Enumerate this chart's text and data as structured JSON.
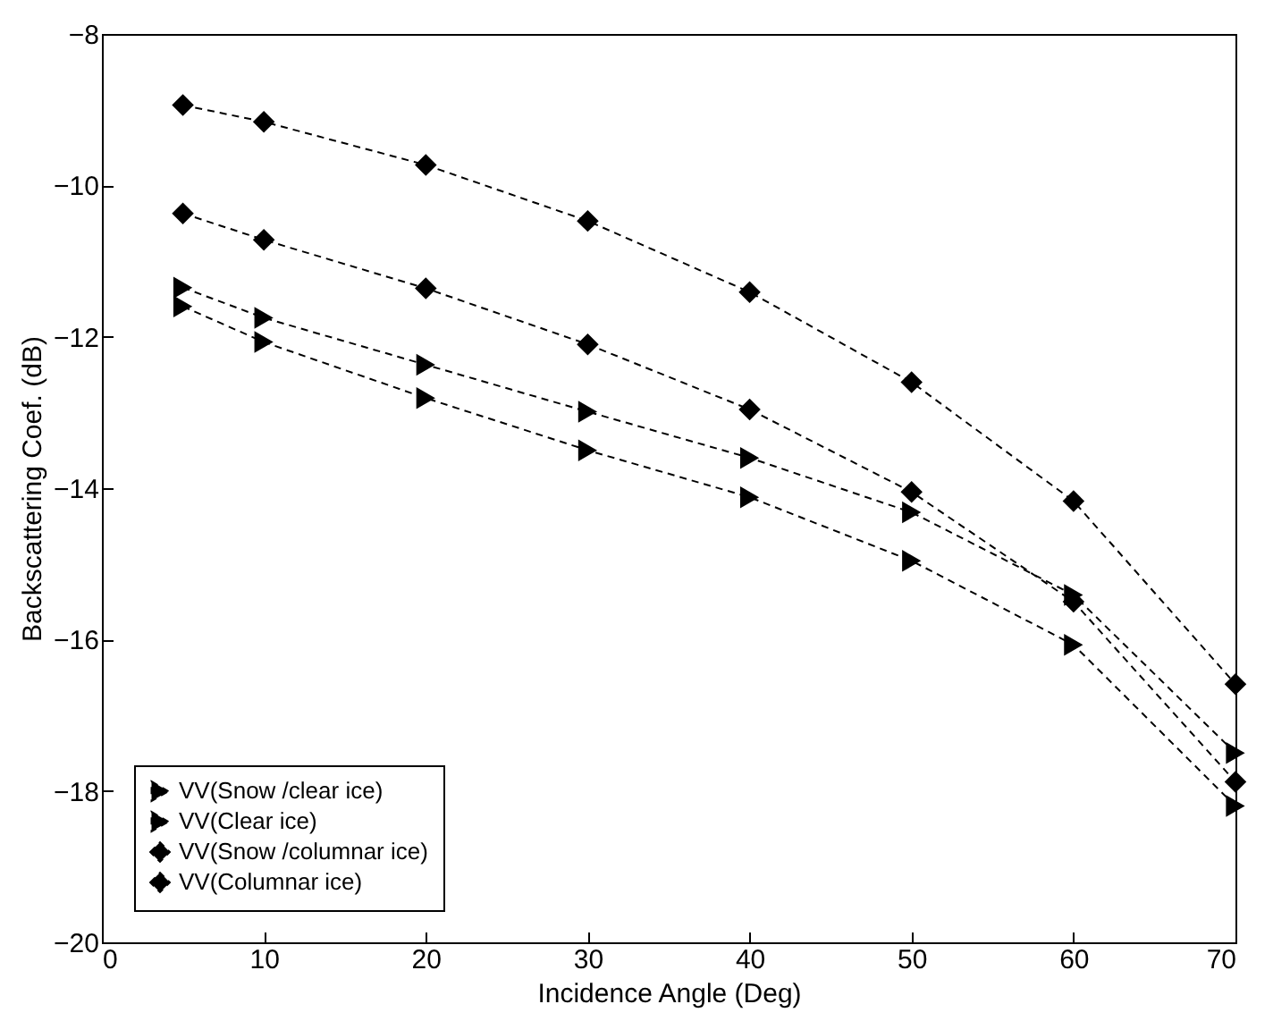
{
  "chart_data": {
    "type": "line",
    "xlabel": "Incidence Angle (Deg)",
    "ylabel": "Backscattering Coef. (dB)",
    "x": [
      5,
      10,
      20,
      30,
      40,
      50,
      60,
      70
    ],
    "xlim": [
      0,
      70
    ],
    "xticks": [
      0,
      10,
      20,
      30,
      40,
      50,
      60,
      70
    ],
    "ylim": [
      -20,
      -8
    ],
    "yticks": [
      -20,
      -18,
      -16,
      -14,
      -12,
      -10,
      -8
    ],
    "grid": false,
    "legend": "bottom left",
    "series": [
      {
        "name": "VV(Snow /clear ice)",
        "color": "#000000",
        "marker": "triangle",
        "line_style": "dashed",
        "values": [
          -11.35,
          -11.75,
          -12.37,
          -12.99,
          -13.6,
          -14.32,
          -15.41,
          -17.5
        ]
      },
      {
        "name": "VV(Clear ice)",
        "color": "#000000",
        "marker": "triangle",
        "line_style": "dashed",
        "values": [
          -11.6,
          -12.07,
          -12.81,
          -13.5,
          -14.12,
          -14.96,
          -16.07,
          -18.2
        ]
      },
      {
        "name": "VV(Snow /columnar ice)",
        "color": "#000000",
        "marker": "diamond",
        "line_style": "dashed",
        "values": [
          -8.94,
          -9.16,
          -9.73,
          -10.47,
          -11.41,
          -12.6,
          -14.17,
          -16.59
        ]
      },
      {
        "name": "VV(Columnar ice)",
        "color": "#000000",
        "marker": "diamond",
        "line_style": "dashed",
        "values": [
          -10.37,
          -10.72,
          -11.36,
          -12.1,
          -12.96,
          -14.05,
          -15.5,
          -17.88
        ]
      }
    ]
  }
}
